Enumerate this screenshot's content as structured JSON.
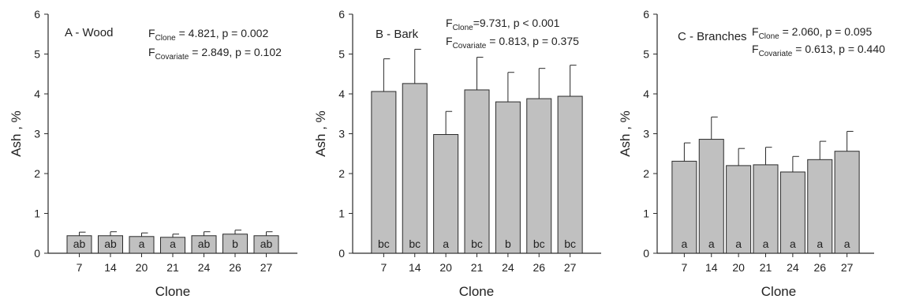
{
  "figure": {
    "x_title": "Clone",
    "y_title": "Ash , %"
  },
  "colors": {
    "bar_fill": "#c0c0c0",
    "bar_stroke": "#2a2a2a",
    "axis": "#2a2a2a",
    "text": "#222222"
  },
  "chart_data": [
    {
      "type": "bar",
      "panel_label": "A - Wood",
      "xlabel": "Clone",
      "ylabel": "Ash , %",
      "ylim": [
        0,
        6
      ],
      "yticks": [
        "0",
        "1",
        "2",
        "3",
        "4",
        "5",
        "6"
      ],
      "categories": [
        "7",
        "14",
        "20",
        "21",
        "24",
        "26",
        "27"
      ],
      "values": [
        0.44,
        0.44,
        0.42,
        0.4,
        0.44,
        0.48,
        0.44
      ],
      "errors": [
        0.09,
        0.1,
        0.09,
        0.08,
        0.1,
        0.1,
        0.1
      ],
      "letters": [
        "ab",
        "ab",
        "a",
        "a",
        "ab",
        "b",
        "ab"
      ],
      "stats": [
        {
          "f": "F",
          "sub": "Clone",
          "text": " = 4.821, p = 0.002"
        },
        {
          "f": "F",
          "sub": "Covariate",
          "text": " = 2.849, p = 0.102"
        }
      ]
    },
    {
      "type": "bar",
      "panel_label": "B - Bark",
      "xlabel": "Clone",
      "ylabel": "Ash , %",
      "ylim": [
        0,
        6
      ],
      "yticks": [
        "0",
        "1",
        "2",
        "3",
        "4",
        "5",
        "6"
      ],
      "categories": [
        "7",
        "14",
        "20",
        "21",
        "24",
        "26",
        "27"
      ],
      "values": [
        4.06,
        4.26,
        2.98,
        4.1,
        3.8,
        3.88,
        3.94
      ],
      "errors": [
        0.82,
        0.86,
        0.58,
        0.82,
        0.74,
        0.76,
        0.78
      ],
      "letters": [
        "bc",
        "bc",
        "a",
        "bc",
        "b",
        "bc",
        "bc"
      ],
      "stats": [
        {
          "f": "F",
          "sub": "Clone",
          "text": "=9.731, p < 0.001"
        },
        {
          "f": "F",
          "sub": "Covariate",
          "text": " = 0.813, p = 0.375"
        }
      ]
    },
    {
      "type": "bar",
      "panel_label": "C - Branches",
      "xlabel": "Clone",
      "ylabel": "Ash , %",
      "ylim": [
        0,
        6
      ],
      "yticks": [
        "0",
        "1",
        "2",
        "3",
        "4",
        "5",
        "6"
      ],
      "categories": [
        "7",
        "14",
        "20",
        "21",
        "24",
        "26",
        "27"
      ],
      "values": [
        2.31,
        2.86,
        2.2,
        2.22,
        2.04,
        2.35,
        2.56
      ],
      "errors": [
        0.46,
        0.56,
        0.43,
        0.44,
        0.39,
        0.46,
        0.5
      ],
      "letters": [
        "a",
        "a",
        "a",
        "a",
        "a",
        "a",
        "a"
      ],
      "stats": [
        {
          "f": "F",
          "sub": "Clone",
          "text": " = 2.060, p = 0.095"
        },
        {
          "f": "F",
          "sub": "Covariate",
          "text": " = 0.613, p = 0.440"
        }
      ]
    }
  ]
}
